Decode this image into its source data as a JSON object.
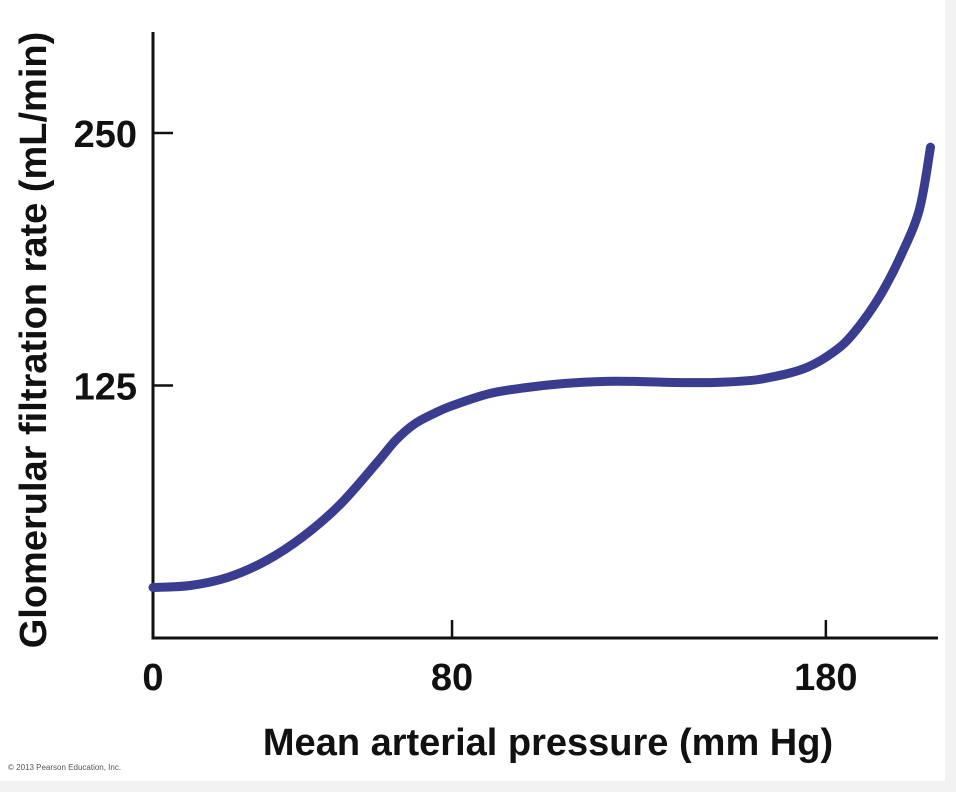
{
  "chart_data": {
    "type": "line",
    "title": "",
    "xlabel": "Mean arterial pressure (mm Hg)",
    "ylabel": "Glomerular filtration rate (mL/min)",
    "xlim": [
      0,
      210
    ],
    "ylim": [
      0,
      300
    ],
    "x_ticks": [
      0,
      80,
      180
    ],
    "y_ticks": [
      125,
      250
    ],
    "grid": false,
    "legend": "none",
    "series": [
      {
        "color": "#3a3d8f",
        "x": [
          0,
          10,
          20,
          30,
          40,
          50,
          60,
          65,
          70,
          75,
          80,
          90,
          100,
          110,
          120,
          130,
          140,
          150,
          160,
          165,
          170,
          175,
          180,
          185,
          190,
          195,
          200,
          205,
          208
        ],
        "y": [
          25,
          26,
          30,
          38,
          50,
          66,
          87,
          98,
          106,
          111,
          115,
          121,
          124,
          126,
          127,
          127,
          126.5,
          126.5,
          127.5,
          129,
          131,
          134,
          139,
          146,
          157,
          171,
          189,
          212,
          243
        ]
      }
    ]
  },
  "footer": {
    "copyright": "© 2013 Pearson Education, Inc."
  }
}
